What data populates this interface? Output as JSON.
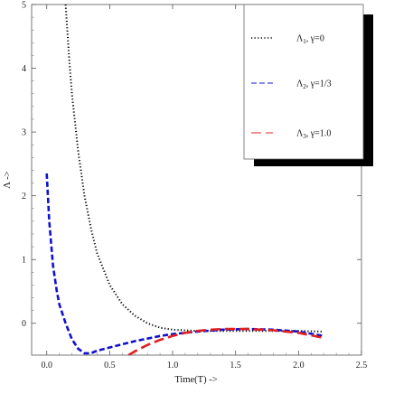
{
  "chart_data": {
    "type": "line",
    "title": "",
    "xlabel": "Time(T) ->",
    "ylabel": "Λ ->",
    "xlim": [
      -0.12,
      2.5
    ],
    "ylim": [
      -0.5,
      5
    ],
    "xticks": [
      "0.0",
      "0.5",
      "1.0",
      "1.5",
      "2.0",
      "2.5"
    ],
    "yticks": [
      "0",
      "1",
      "2",
      "3",
      "4",
      "5"
    ],
    "grid": false,
    "legend_position": "top-right",
    "series": [
      {
        "name": "Λ1, γ=0",
        "legend": {
          "symbol": "Λ",
          "sub": "1",
          "rest": ", γ=0"
        },
        "color": "#000000",
        "style": "dotted",
        "x": [
          0.15,
          0.18,
          0.2,
          0.25,
          0.3,
          0.35,
          0.4,
          0.5,
          0.6,
          0.7,
          0.8,
          0.9,
          1.0,
          1.2,
          1.4,
          1.6,
          1.8,
          2.0,
          2.2
        ],
        "y": [
          5.0,
          4.1,
          3.6,
          2.7,
          2.0,
          1.5,
          1.1,
          0.6,
          0.3,
          0.12,
          0.0,
          -0.07,
          -0.1,
          -0.12,
          -0.12,
          -0.12,
          -0.12,
          -0.12,
          -0.13
        ]
      },
      {
        "name": "Λ2, γ=1/3",
        "legend": {
          "symbol": "Λ",
          "sub": "2",
          "rest": ", γ=1/3"
        },
        "color": "#1010d0",
        "style": "dashed",
        "x": [
          0.0,
          0.02,
          0.05,
          0.08,
          0.1,
          0.15,
          0.2,
          0.25,
          0.3,
          0.35,
          0.4,
          0.5,
          0.6,
          0.7,
          0.8,
          0.9,
          1.0,
          1.2,
          1.4,
          1.6,
          1.8,
          2.0,
          2.2
        ],
        "y": [
          2.35,
          1.6,
          0.9,
          0.5,
          0.3,
          0.0,
          -0.25,
          -0.4,
          -0.47,
          -0.47,
          -0.43,
          -0.38,
          -0.33,
          -0.28,
          -0.24,
          -0.2,
          -0.17,
          -0.13,
          -0.1,
          -0.09,
          -0.1,
          -0.13,
          -0.2
        ]
      },
      {
        "name": "Λ3, γ=1.0",
        "legend": {
          "symbol": "Λ",
          "sub": "3",
          "rest": ", γ=1.0"
        },
        "color": "#e02020",
        "style": "longdash",
        "x": [
          0.65,
          0.7,
          0.8,
          0.9,
          1.0,
          1.1,
          1.2,
          1.3,
          1.4,
          1.5,
          1.6,
          1.7,
          1.8,
          1.9,
          2.0,
          2.1,
          2.2
        ],
        "y": [
          -0.5,
          -0.44,
          -0.34,
          -0.26,
          -0.2,
          -0.15,
          -0.12,
          -0.1,
          -0.09,
          -0.09,
          -0.09,
          -0.1,
          -0.11,
          -0.13,
          -0.15,
          -0.19,
          -0.23
        ]
      }
    ]
  }
}
